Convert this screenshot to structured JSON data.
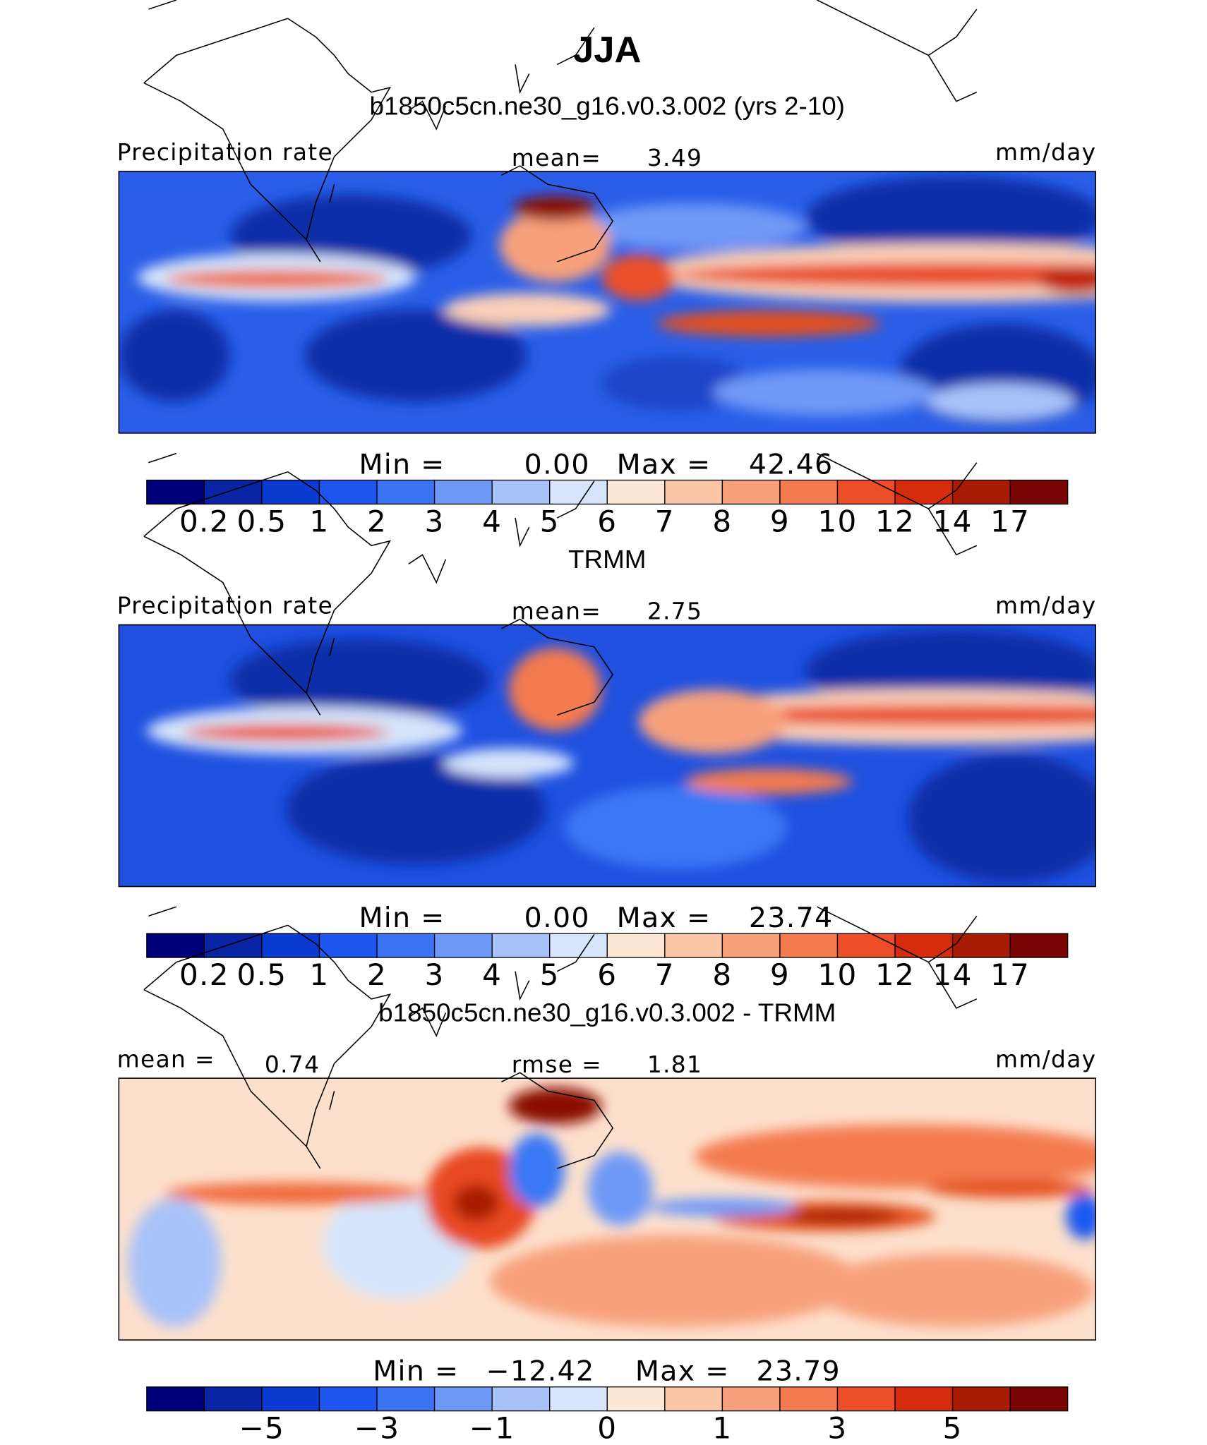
{
  "title": "JJA",
  "panels": [
    {
      "heading": "b1850c5cn.ne30_g16.v0.3.002 (yrs 2-10)",
      "left": "Precipitation rate",
      "center_label": "mean=",
      "center_value": "3.49",
      "units": "mm/day",
      "min_label": "Min =",
      "min": "0.00",
      "max_label": "Max =",
      "max": "42.46",
      "colorbar": {
        "colors": [
          "#00007a",
          "#0a24a6",
          "#0b3bd0",
          "#1c56ee",
          "#3a74f3",
          "#6e98f6",
          "#a8c2f9",
          "#d6e5fb",
          "#fde8d6",
          "#fbc6a8",
          "#f8a07b",
          "#f47a50",
          "#ec4e28",
          "#d42c0c",
          "#a81b05",
          "#780503"
        ],
        "labels": [
          "0.2",
          "0.5",
          "1",
          "2",
          "3",
          "4",
          "5",
          "6",
          "7",
          "8",
          "9",
          "10",
          "12",
          "14",
          "17"
        ]
      }
    },
    {
      "heading": "TRMM",
      "left": "Precipitation rate",
      "center_label": "mean=",
      "center_value": "2.75",
      "units": "mm/day",
      "min_label": "Min =",
      "min": "0.00",
      "max_label": "Max =",
      "max": "23.74",
      "colorbar": {
        "colors": [
          "#00007a",
          "#0a24a6",
          "#0b3bd0",
          "#1c56ee",
          "#3a74f3",
          "#6e98f6",
          "#a8c2f9",
          "#d6e5fb",
          "#fde8d6",
          "#fbc6a8",
          "#f8a07b",
          "#f47a50",
          "#ec4e28",
          "#d42c0c",
          "#a81b05",
          "#780503"
        ],
        "labels": [
          "0.2",
          "0.5",
          "1",
          "2",
          "3",
          "4",
          "5",
          "6",
          "7",
          "8",
          "9",
          "10",
          "12",
          "14",
          "17"
        ]
      }
    },
    {
      "heading": "b1850c5cn.ne30_g16.v0.3.002 - TRMM",
      "left": "mean =",
      "left_value": "0.74",
      "center_label": "rmse =",
      "center_value": "1.81",
      "units": "mm/day",
      "min_label": "Min =",
      "min": "−12.42",
      "max_label": "Max =",
      "max": "23.79",
      "colorbar": {
        "colors": [
          "#00007a",
          "#0a24a6",
          "#0b3bd0",
          "#1c56ee",
          "#3a74f3",
          "#6e98f6",
          "#a8c2f9",
          "#d6e5fb",
          "#fde8d6",
          "#fbc6a8",
          "#f8a07b",
          "#f47a50",
          "#ec4e28",
          "#d42c0c",
          "#a81b05",
          "#780503"
        ],
        "labels": [
          "−5",
          "−3",
          "−1",
          "0",
          "1",
          "3",
          "5"
        ]
      }
    }
  ]
}
